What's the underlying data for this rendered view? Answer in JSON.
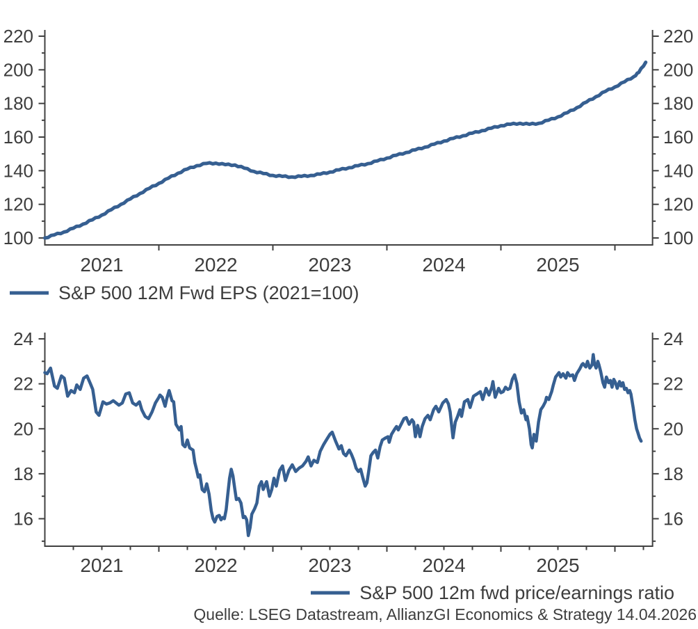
{
  "colors": {
    "line": "#365F91",
    "axis": "#404040",
    "text": "#3d3d3d"
  },
  "source": "Quelle: LSEG Datastream, AllianzGI Economics & Strategy 14.04.2026",
  "chart_data": [
    {
      "type": "line",
      "id": "eps",
      "legend": "S&P 500 12M Fwd EPS (2021=100)",
      "legend_position": "bottom-left",
      "grid": false,
      "x_range_years": [
        2021.0,
        2026.33
      ],
      "x_tick_years": [
        2022,
        2023,
        2024,
        2025,
        2026
      ],
      "x_quarter_ticks": false,
      "x_year_labels": [
        "2021",
        "2022",
        "2023",
        "2024",
        "2025"
      ],
      "ylim": [
        95.9,
        223.7
      ],
      "y_major_ticks": [
        100,
        120,
        140,
        160,
        180,
        200,
        220
      ],
      "y_minor_ticks": [
        110,
        130,
        150,
        170,
        190,
        210
      ],
      "series_points_t_v": [
        [
          2021.0,
          100.0
        ],
        [
          2021.083,
          101.8
        ],
        [
          2021.167,
          103.5
        ],
        [
          2021.25,
          105.8
        ],
        [
          2021.333,
          108.2
        ],
        [
          2021.417,
          110.8
        ],
        [
          2021.5,
          113.6
        ],
        [
          2021.583,
          116.8
        ],
        [
          2021.667,
          120.0
        ],
        [
          2021.75,
          123.2
        ],
        [
          2021.833,
          126.4
        ],
        [
          2021.917,
          129.5
        ],
        [
          2022.0,
          132.5
        ],
        [
          2022.083,
          135.5
        ],
        [
          2022.167,
          138.5
        ],
        [
          2022.25,
          141.0
        ],
        [
          2022.333,
          143.0
        ],
        [
          2022.417,
          144.3
        ],
        [
          2022.5,
          144.5
        ],
        [
          2022.583,
          143.6
        ],
        [
          2022.667,
          143.4
        ],
        [
          2022.75,
          141.5
        ],
        [
          2022.833,
          139.6
        ],
        [
          2022.917,
          138.3
        ],
        [
          2023.0,
          137.2
        ],
        [
          2023.083,
          136.6
        ],
        [
          2023.167,
          136.3
        ],
        [
          2023.25,
          136.6
        ],
        [
          2023.333,
          137.2
        ],
        [
          2023.417,
          138.0
        ],
        [
          2023.5,
          139.2
        ],
        [
          2023.583,
          140.5
        ],
        [
          2023.667,
          141.8
        ],
        [
          2023.75,
          143.0
        ],
        [
          2023.833,
          144.2
        ],
        [
          2023.917,
          145.8
        ],
        [
          2024.0,
          147.5
        ],
        [
          2024.083,
          149.2
        ],
        [
          2024.167,
          150.8
        ],
        [
          2024.25,
          152.4
        ],
        [
          2024.333,
          154.0
        ],
        [
          2024.417,
          155.8
        ],
        [
          2024.5,
          157.6
        ],
        [
          2024.583,
          159.2
        ],
        [
          2024.667,
          160.8
        ],
        [
          2024.75,
          162.3
        ],
        [
          2024.833,
          163.8
        ],
        [
          2024.917,
          165.3
        ],
        [
          2025.0,
          166.8
        ],
        [
          2025.083,
          167.6
        ],
        [
          2025.167,
          168.2
        ],
        [
          2025.25,
          167.6
        ],
        [
          2025.333,
          168.2
        ],
        [
          2025.417,
          170.0
        ],
        [
          2025.5,
          172.0
        ],
        [
          2025.583,
          174.5
        ],
        [
          2025.667,
          177.5
        ],
        [
          2025.75,
          180.8
        ],
        [
          2025.833,
          184.0
        ],
        [
          2025.917,
          187.2
        ],
        [
          2026.0,
          189.8
        ],
        [
          2026.083,
          192.8
        ],
        [
          2026.167,
          196.0
        ],
        [
          2026.21,
          198.5
        ],
        [
          2026.27,
          204.5
        ]
      ]
    },
    {
      "type": "line",
      "id": "pe",
      "legend": "S&P 500 12m fwd price/earnings ratio",
      "legend_position": "bottom-right",
      "grid": false,
      "x_range_years": [
        2021.0,
        2026.33
      ],
      "x_tick_years": [
        2022,
        2023,
        2024,
        2025,
        2026
      ],
      "x_quarter_ticks": true,
      "x_year_labels": [
        "2021",
        "2022",
        "2023",
        "2024",
        "2025"
      ],
      "ylim": [
        14.78,
        24.28
      ],
      "y_major_ticks": [
        16,
        18,
        20,
        22,
        24
      ],
      "y_minor_ticks": [
        15,
        17,
        19,
        21,
        23
      ],
      "series_points_t_v": [
        [
          2021.0,
          22.5
        ],
        [
          2021.02,
          22.45
        ],
        [
          2021.05,
          22.7
        ],
        [
          2021.085,
          21.9
        ],
        [
          2021.11,
          21.8
        ],
        [
          2021.145,
          22.35
        ],
        [
          2021.17,
          22.25
        ],
        [
          2021.2,
          21.45
        ],
        [
          2021.23,
          21.7
        ],
        [
          2021.26,
          21.6
        ],
        [
          2021.28,
          21.95
        ],
        [
          2021.31,
          21.75
        ],
        [
          2021.34,
          22.25
        ],
        [
          2021.37,
          22.35
        ],
        [
          2021.4,
          22.0
        ],
        [
          2021.42,
          21.75
        ],
        [
          2021.45,
          20.75
        ],
        [
          2021.475,
          20.6
        ],
        [
          2021.51,
          21.2
        ],
        [
          2021.54,
          21.1
        ],
        [
          2021.57,
          21.15
        ],
        [
          2021.6,
          21.25
        ],
        [
          2021.65,
          21.05
        ],
        [
          2021.68,
          21.15
        ],
        [
          2021.71,
          21.55
        ],
        [
          2021.74,
          21.6
        ],
        [
          2021.77,
          21.15
        ],
        [
          2021.8,
          21.05
        ],
        [
          2021.83,
          21.2
        ],
        [
          2021.85,
          20.85
        ],
        [
          2021.88,
          20.55
        ],
        [
          2021.91,
          20.45
        ],
        [
          2021.94,
          20.75
        ],
        [
          2021.97,
          21.15
        ],
        [
          2022.0,
          21.4
        ],
        [
          2022.01,
          21.5
        ],
        [
          2022.03,
          21.4
        ],
        [
          2022.055,
          21.0
        ],
        [
          2022.07,
          21.35
        ],
        [
          2022.09,
          21.7
        ],
        [
          2022.115,
          21.25
        ],
        [
          2022.13,
          21.2
        ],
        [
          2022.15,
          20.2
        ],
        [
          2022.18,
          19.95
        ],
        [
          2022.195,
          20.1
        ],
        [
          2022.21,
          19.3
        ],
        [
          2022.23,
          19.2
        ],
        [
          2022.25,
          19.5
        ],
        [
          2022.27,
          19.15
        ],
        [
          2022.3,
          19.05
        ],
        [
          2022.315,
          18.5
        ],
        [
          2022.33,
          18.2
        ],
        [
          2022.345,
          17.85
        ],
        [
          2022.36,
          17.95
        ],
        [
          2022.38,
          17.3
        ],
        [
          2022.4,
          17.2
        ],
        [
          2022.42,
          17.55
        ],
        [
          2022.44,
          17.1
        ],
        [
          2022.46,
          16.35
        ],
        [
          2022.475,
          16.0
        ],
        [
          2022.49,
          15.85
        ],
        [
          2022.51,
          16.1
        ],
        [
          2022.53,
          16.15
        ],
        [
          2022.545,
          15.95
        ],
        [
          2022.56,
          16.05
        ],
        [
          2022.575,
          16.0
        ],
        [
          2022.59,
          16.4
        ],
        [
          2022.605,
          17.1
        ],
        [
          2022.62,
          17.8
        ],
        [
          2022.635,
          18.2
        ],
        [
          2022.65,
          17.9
        ],
        [
          2022.665,
          17.35
        ],
        [
          2022.68,
          16.85
        ],
        [
          2022.7,
          16.9
        ],
        [
          2022.72,
          16.7
        ],
        [
          2022.74,
          16.05
        ],
        [
          2022.755,
          16.1
        ],
        [
          2022.77,
          15.95
        ],
        [
          2022.785,
          15.25
        ],
        [
          2022.8,
          15.6
        ],
        [
          2022.815,
          16.2
        ],
        [
          2022.84,
          16.45
        ],
        [
          2022.86,
          16.7
        ],
        [
          2022.88,
          17.45
        ],
        [
          2022.9,
          17.65
        ],
        [
          2022.915,
          17.3
        ],
        [
          2022.945,
          17.65
        ],
        [
          2022.97,
          17.0
        ],
        [
          2022.99,
          17.3
        ],
        [
          2023.01,
          17.8
        ],
        [
          2023.03,
          17.45
        ],
        [
          2023.06,
          18.15
        ],
        [
          2023.085,
          18.35
        ],
        [
          2023.11,
          17.7
        ],
        [
          2023.14,
          18.15
        ],
        [
          2023.17,
          18.4
        ],
        [
          2023.2,
          18.1
        ],
        [
          2023.23,
          18.25
        ],
        [
          2023.26,
          18.35
        ],
        [
          2023.29,
          18.55
        ],
        [
          2023.31,
          18.75
        ],
        [
          2023.335,
          18.35
        ],
        [
          2023.36,
          18.6
        ],
        [
          2023.39,
          18.5
        ],
        [
          2023.415,
          19.0
        ],
        [
          2023.445,
          19.3
        ],
        [
          2023.475,
          19.55
        ],
        [
          2023.5,
          19.75
        ],
        [
          2023.52,
          19.85
        ],
        [
          2023.55,
          19.45
        ],
        [
          2023.58,
          19.1
        ],
        [
          2023.6,
          19.25
        ],
        [
          2023.62,
          18.9
        ],
        [
          2023.64,
          18.8
        ],
        [
          2023.67,
          19.05
        ],
        [
          2023.69,
          18.85
        ],
        [
          2023.71,
          18.6
        ],
        [
          2023.73,
          18.25
        ],
        [
          2023.75,
          18.1
        ],
        [
          2023.77,
          18.2
        ],
        [
          2023.79,
          17.8
        ],
        [
          2023.81,
          17.45
        ],
        [
          2023.825,
          17.6
        ],
        [
          2023.84,
          18.1
        ],
        [
          2023.86,
          18.8
        ],
        [
          2023.88,
          18.95
        ],
        [
          2023.9,
          19.05
        ],
        [
          2023.92,
          18.7
        ],
        [
          2023.94,
          19.2
        ],
        [
          2023.96,
          19.5
        ],
        [
          2023.99,
          19.6
        ],
        [
          2024.01,
          19.65
        ],
        [
          2024.02,
          19.4
        ],
        [
          2024.04,
          19.75
        ],
        [
          2024.07,
          20.0
        ],
        [
          2024.085,
          20.1
        ],
        [
          2024.1,
          19.95
        ],
        [
          2024.13,
          20.25
        ],
        [
          2024.15,
          20.45
        ],
        [
          2024.17,
          20.5
        ],
        [
          2024.195,
          20.2
        ],
        [
          2024.22,
          20.4
        ],
        [
          2024.235,
          20.3
        ],
        [
          2024.25,
          19.65
        ],
        [
          2024.27,
          20.15
        ],
        [
          2024.29,
          19.65
        ],
        [
          2024.31,
          20.1
        ],
        [
          2024.335,
          20.45
        ],
        [
          2024.36,
          20.6
        ],
        [
          2024.38,
          20.4
        ],
        [
          2024.41,
          20.85
        ],
        [
          2024.43,
          21.0
        ],
        [
          2024.455,
          20.75
        ],
        [
          2024.49,
          21.15
        ],
        [
          2024.52,
          21.3
        ],
        [
          2024.54,
          21.1
        ],
        [
          2024.555,
          20.75
        ],
        [
          2024.58,
          19.6
        ],
        [
          2024.6,
          20.3
        ],
        [
          2024.62,
          20.55
        ],
        [
          2024.64,
          20.85
        ],
        [
          2024.655,
          20.55
        ],
        [
          2024.68,
          21.2
        ],
        [
          2024.71,
          21.3
        ],
        [
          2024.73,
          20.95
        ],
        [
          2024.76,
          21.45
        ],
        [
          2024.79,
          21.55
        ],
        [
          2024.82,
          21.65
        ],
        [
          2024.84,
          21.3
        ],
        [
          2024.87,
          21.8
        ],
        [
          2024.895,
          21.5
        ],
        [
          2024.92,
          21.85
        ],
        [
          2024.93,
          22.1
        ],
        [
          2024.95,
          21.4
        ],
        [
          2024.98,
          21.8
        ],
        [
          2025.0,
          21.6
        ],
        [
          2025.02,
          21.65
        ],
        [
          2025.04,
          21.85
        ],
        [
          2025.06,
          21.75
        ],
        [
          2025.08,
          21.8
        ],
        [
          2025.1,
          22.2
        ],
        [
          2025.12,
          22.4
        ],
        [
          2025.14,
          22.0
        ],
        [
          2025.16,
          21.2
        ],
        [
          2025.18,
          20.7
        ],
        [
          2025.2,
          20.85
        ],
        [
          2025.22,
          20.4
        ],
        [
          2025.23,
          20.55
        ],
        [
          2025.25,
          20.0
        ],
        [
          2025.265,
          19.3
        ],
        [
          2025.275,
          19.15
        ],
        [
          2025.29,
          19.75
        ],
        [
          2025.31,
          19.45
        ],
        [
          2025.33,
          20.3
        ],
        [
          2025.35,
          20.85
        ],
        [
          2025.37,
          21.0
        ],
        [
          2025.39,
          21.2
        ],
        [
          2025.4,
          21.4
        ],
        [
          2025.42,
          21.3
        ],
        [
          2025.445,
          21.65
        ],
        [
          2025.46,
          21.95
        ],
        [
          2025.48,
          22.3
        ],
        [
          2025.51,
          22.5
        ],
        [
          2025.525,
          22.3
        ],
        [
          2025.545,
          22.45
        ],
        [
          2025.57,
          22.25
        ],
        [
          2025.585,
          22.5
        ],
        [
          2025.605,
          22.35
        ],
        [
          2025.63,
          22.4
        ],
        [
          2025.645,
          22.15
        ],
        [
          2025.665,
          22.45
        ],
        [
          2025.69,
          22.65
        ],
        [
          2025.71,
          22.85
        ],
        [
          2025.72,
          22.9
        ],
        [
          2025.745,
          22.75
        ],
        [
          2025.76,
          23.0
        ],
        [
          2025.78,
          22.7
        ],
        [
          2025.8,
          22.85
        ],
        [
          2025.81,
          23.3
        ],
        [
          2025.82,
          22.9
        ],
        [
          2025.835,
          22.7
        ],
        [
          2025.85,
          23.0
        ],
        [
          2025.86,
          22.85
        ],
        [
          2025.875,
          22.55
        ],
        [
          2025.895,
          22.05
        ],
        [
          2025.91,
          21.85
        ],
        [
          2025.925,
          22.3
        ],
        [
          2025.945,
          22.05
        ],
        [
          2025.96,
          22.15
        ],
        [
          2025.975,
          21.85
        ],
        [
          2025.99,
          22.2
        ],
        [
          2026.005,
          22.05
        ],
        [
          2026.02,
          21.8
        ],
        [
          2026.04,
          22.1
        ],
        [
          2026.055,
          21.9
        ],
        [
          2026.07,
          22.05
        ],
        [
          2026.085,
          21.75
        ],
        [
          2026.1,
          21.8
        ],
        [
          2026.115,
          21.6
        ],
        [
          2026.13,
          21.7
        ],
        [
          2026.14,
          21.55
        ],
        [
          2026.16,
          20.95
        ],
        [
          2026.175,
          20.4
        ],
        [
          2026.19,
          20.0
        ],
        [
          2026.2,
          19.85
        ],
        [
          2026.215,
          19.6
        ],
        [
          2026.23,
          19.45
        ]
      ]
    }
  ]
}
